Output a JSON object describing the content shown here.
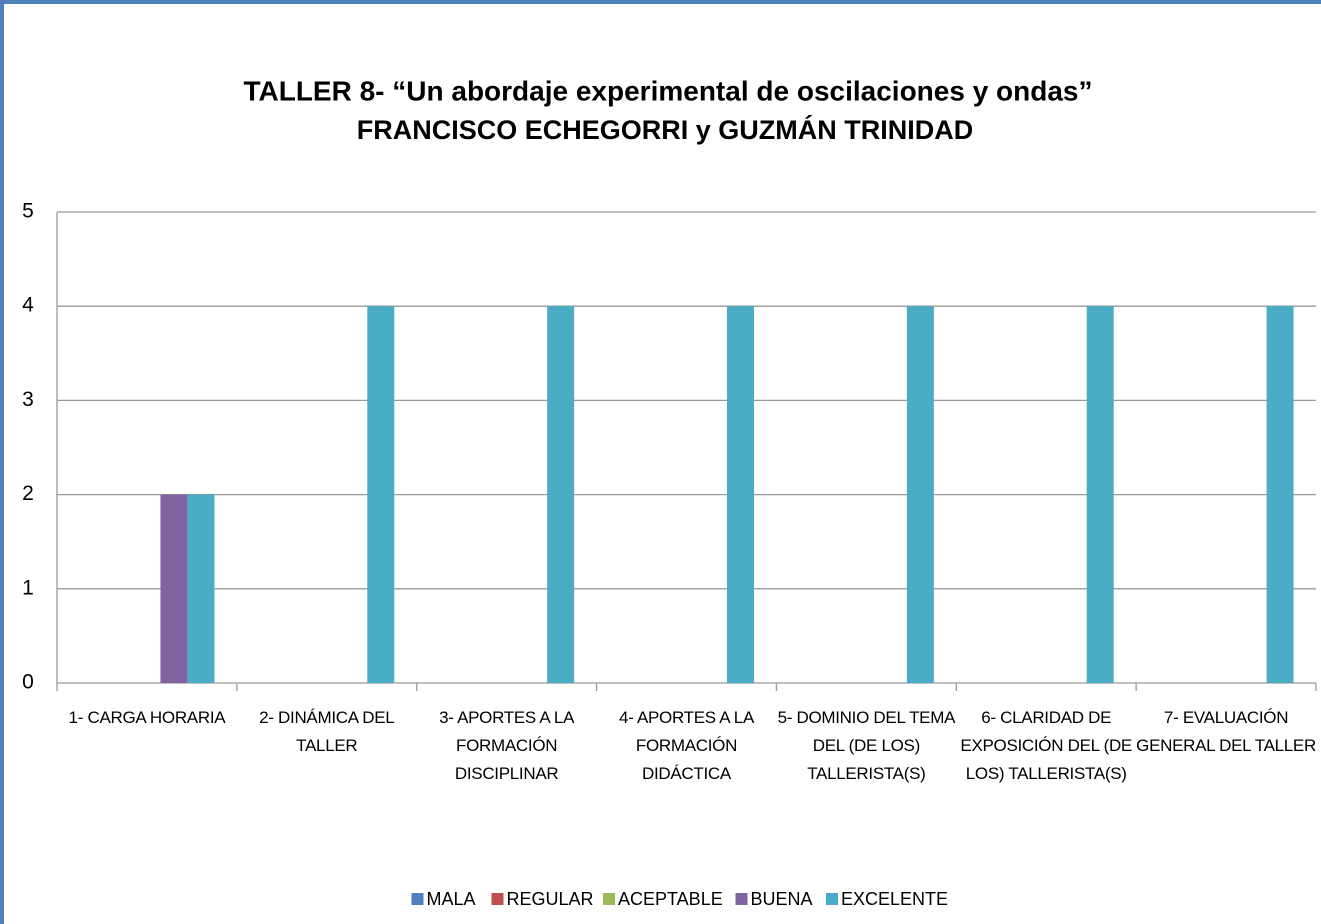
{
  "chart_data": {
    "type": "bar",
    "title": "TALLER 8- “Un abordaje experimental de oscilaciones y ondas”",
    "subtitle": "FRANCISCO ECHEGORRI y GUZMÁN TRINIDAD",
    "categories": [
      "1- CARGA HORARIA",
      "2- DINÁMICA DEL TALLER",
      "3- APORTES A LA FORMACIÓN DISCIPLINAR",
      "4- APORTES A LA FORMACIÓN DIDÁCTICA",
      "5- DOMINIO DEL TEMA DEL (DE LOS) TALLERISTA(S)",
      "6- CLARIDAD DE EXPOSICIÓN DEL (DE LOS) TALLERISTA(S)",
      "7- EVALUACIÓN GENERAL DEL TALLER"
    ],
    "series": [
      {
        "name": "MALA",
        "color": "#4f81bd",
        "values": [
          0,
          0,
          0,
          0,
          0,
          0,
          0
        ]
      },
      {
        "name": "REGULAR",
        "color": "#c0504d",
        "values": [
          0,
          0,
          0,
          0,
          0,
          0,
          0
        ]
      },
      {
        "name": "ACEPTABLE",
        "color": "#9bbb59",
        "values": [
          0,
          0,
          0,
          0,
          0,
          0,
          0
        ]
      },
      {
        "name": "BUENA",
        "color": "#8064a2",
        "values": [
          2,
          0,
          0,
          0,
          0,
          0,
          0
        ]
      },
      {
        "name": "EXCELENTE",
        "color": "#4bacc6",
        "values": [
          2,
          4,
          4,
          4,
          4,
          4,
          4
        ]
      }
    ],
    "ylim": [
      0,
      5
    ],
    "yticks": [
      0,
      1,
      2,
      3,
      4,
      5
    ],
    "grid": true,
    "legend": "bottom"
  }
}
